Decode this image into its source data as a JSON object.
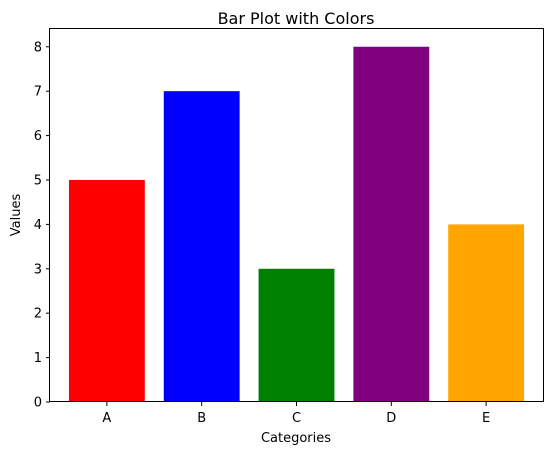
{
  "chart_data": {
    "type": "bar",
    "title": "Bar Plot with Colors",
    "xlabel": "Categories",
    "ylabel": "Values",
    "categories": [
      "A",
      "B",
      "C",
      "D",
      "E"
    ],
    "values": [
      5,
      7,
      3,
      8,
      4
    ],
    "colors": [
      "#ff0000",
      "#0000ff",
      "#008000",
      "#800080",
      "#ffa500"
    ],
    "ylim": [
      0,
      8.4
    ],
    "yticks": [
      0,
      1,
      2,
      3,
      4,
      5,
      6,
      7,
      8
    ],
    "grid": false,
    "legend": "none"
  }
}
